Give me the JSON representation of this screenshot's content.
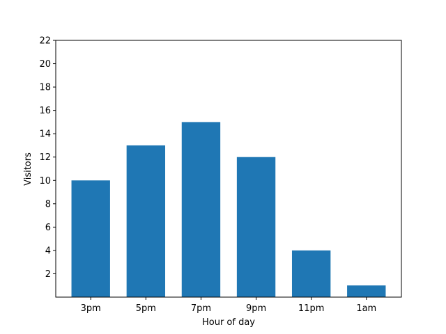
{
  "chart_data": {
    "type": "bar",
    "x_label": "Hour of day",
    "y_label": "Visitors",
    "categories": [
      "3pm",
      "5pm",
      "7pm",
      "9pm",
      "11pm",
      "1am"
    ],
    "values": [
      10,
      13,
      15,
      12,
      4,
      1
    ],
    "color": "#1f77b4",
    "ylim": [
      0,
      22
    ],
    "yticks": [
      2,
      4,
      6,
      8,
      10,
      12,
      14,
      16,
      18,
      20,
      22
    ]
  }
}
